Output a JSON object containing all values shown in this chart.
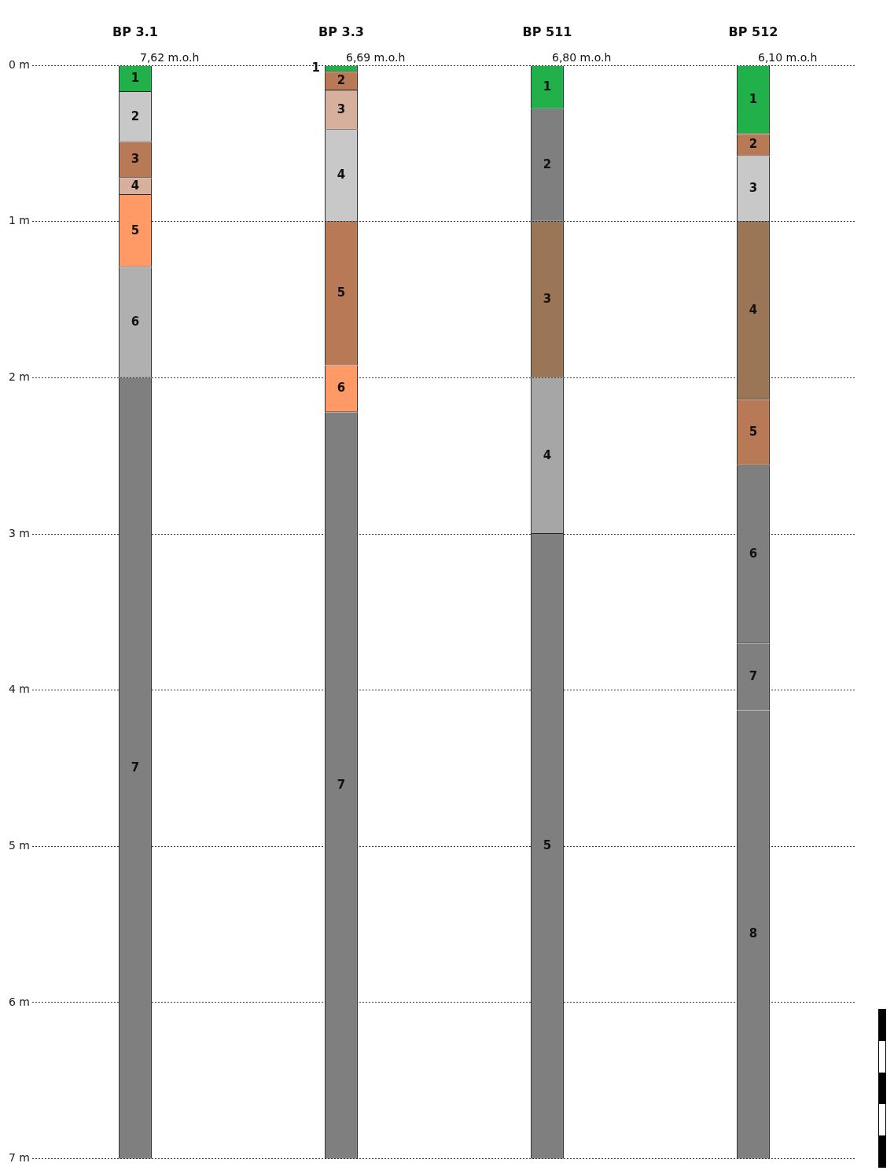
{
  "chart_data": {
    "type": "bar",
    "stacked": true,
    "categories": [
      "BP 3.1",
      "BP 3.3",
      "BP 511",
      "BP 512"
    ],
    "series": [
      {
        "name": "1",
        "values": [
          0.17,
          0.04,
          0.28,
          0.44
        ],
        "colors": [
          "#22b04b",
          "#22b04b",
          "#22b04b",
          "#22b04b"
        ]
      },
      {
        "name": "2",
        "values": [
          0.32,
          0.12,
          0.72,
          0.14
        ],
        "colors": [
          "#c8c8c8",
          "#b87a56",
          "#7f7f7f",
          "#b87a56"
        ]
      },
      {
        "name": "3",
        "values": [
          0.23,
          0.25,
          1.0,
          0.42
        ],
        "colors": [
          "#b87a56",
          "#d6b09c",
          "#9b7656",
          "#c8c8c8"
        ]
      },
      {
        "name": "4",
        "values": [
          0.11,
          0.59,
          1.0,
          1.14
        ],
        "colors": [
          "#d6b09c",
          "#c8c8c8",
          "#a6a6a6",
          "#9b7656"
        ]
      },
      {
        "name": "5",
        "values": [
          0.46,
          0.92,
          4.0,
          0.42
        ],
        "colors": [
          "#ff9966",
          "#b87a56",
          "#7f7f7f",
          "#b87a56"
        ]
      },
      {
        "name": "6",
        "values": [
          0.71,
          0.3,
          null,
          1.14
        ],
        "colors": [
          "#b0b0b0",
          "#ff9966",
          null,
          "#7f7f7f"
        ]
      },
      {
        "name": "7",
        "values": [
          5.0,
          4.78,
          null,
          0.43
        ],
        "colors": [
          "#7f7f7f",
          "#7f7f7f",
          null,
          "#7f7f7f"
        ]
      },
      {
        "name": "8",
        "values": [
          null,
          null,
          null,
          2.87
        ],
        "colors": [
          null,
          null,
          null,
          "#7f7f7f"
        ]
      }
    ],
    "ylim": [
      7,
      0
    ],
    "yticks": [
      {
        "value": 0,
        "label": "0 m"
      },
      {
        "value": 1,
        "label": "1 m"
      },
      {
        "value": 2,
        "label": "2 m"
      },
      {
        "value": 3,
        "label": "3 m"
      },
      {
        "value": 4,
        "label": "4 m"
      },
      {
        "value": 5,
        "label": "5 m"
      },
      {
        "value": 6,
        "label": "6 m"
      },
      {
        "value": 7,
        "label": "7 m"
      }
    ],
    "grid": "y",
    "legend": false,
    "annotations": [
      {
        "text": "7,62 m.o.h",
        "x": "BP 3.1",
        "y": 0
      },
      {
        "text": "6,69 m.o.h",
        "x": "BP 3.3",
        "y": 0
      },
      {
        "text": "6,80 m.o.h",
        "x": "BP 511",
        "y": 0
      },
      {
        "text": "6,10 m.o.h",
        "x": "BP 512",
        "y": 0
      }
    ]
  }
}
